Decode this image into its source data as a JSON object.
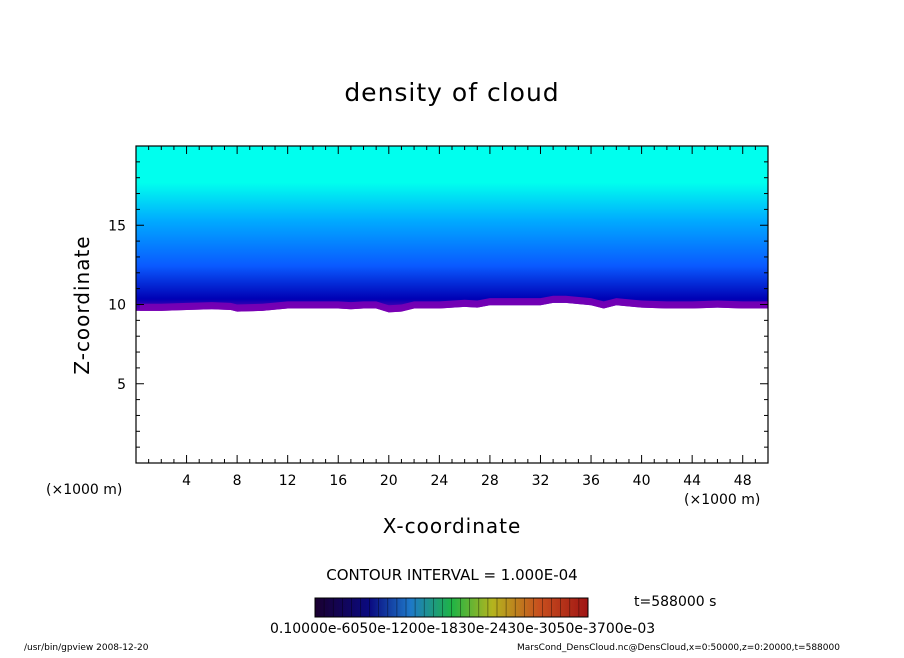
{
  "chart_data": {
    "type": "heatmap",
    "title": "density of cloud",
    "xlabel": "X-coordinate",
    "ylabel": "Z-coordinate",
    "x_unit_label": "(×1000 m)",
    "xlim": [
      0,
      50
    ],
    "ylim": [
      0,
      20
    ],
    "x_ticks": [
      "4",
      "8",
      "12",
      "16",
      "20",
      "24",
      "28",
      "32",
      "36",
      "40",
      "44",
      "48"
    ],
    "y_ticks": [
      "5",
      "10",
      "15"
    ],
    "contour_interval_label": "CONTOUR INTERVAL = 1.000E-04",
    "time_label": "t=588000 s",
    "colorbar_tick_text": "0.10000e-6050e-1200e-1830e-2430e-3050e-3700e-03",
    "footer_left": "/usr/bin/gpview  2008-12-20",
    "footer_right": "MarsCond_DensCloud.nc@DensCloud,x=0:50000,z=0:20000,t=588000",
    "cloud_base_profile": {
      "x": [
        0.3,
        2,
        4,
        6,
        7.5,
        8,
        10,
        12,
        14,
        16,
        17,
        18,
        19,
        20,
        21,
        22,
        24,
        26,
        27,
        28,
        30,
        32,
        33,
        34,
        36,
        37,
        38,
        40,
        42,
        44,
        46,
        48,
        50
      ],
      "z": [
        9.6,
        9.6,
        9.65,
        9.7,
        9.65,
        9.55,
        9.6,
        9.75,
        9.75,
        9.75,
        9.7,
        9.75,
        9.75,
        9.5,
        9.55,
        9.75,
        9.75,
        9.85,
        9.8,
        9.95,
        9.95,
        9.95,
        10.1,
        10.1,
        9.95,
        9.75,
        9.95,
        9.8,
        9.75,
        9.75,
        9.8,
        9.75,
        9.75
      ]
    },
    "colors": {
      "top_layer": "#00ffee",
      "mid_layer": "#0a5aff",
      "deep_layer": "#0000b4",
      "base_layer": "#7a00b4"
    }
  }
}
